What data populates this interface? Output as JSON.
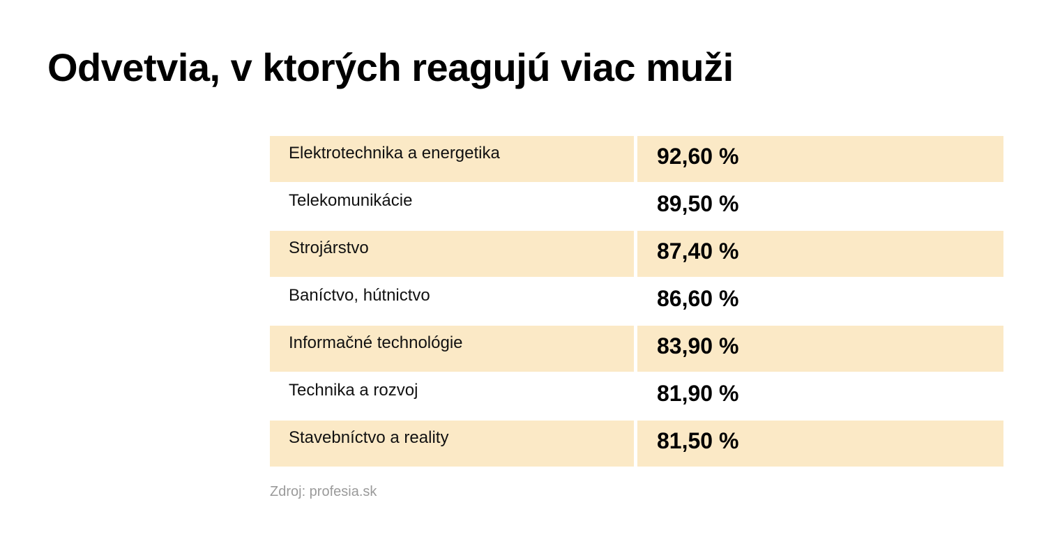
{
  "title": "Odvetvia, v ktorých reagujú viac muži",
  "source": "Zdroj: profesia.sk",
  "colors": {
    "row_shade": "#fbe9c6",
    "text": "#111111",
    "source_text": "#9a9a9a"
  },
  "chart_data": {
    "type": "table",
    "title": "Odvetvia, v ktorých reagujú viac muži",
    "columns": [
      "",
      ""
    ],
    "rows": [
      {
        "label": "Elektrotechnika a energetika",
        "value": 92.6,
        "value_text": "92,60 %",
        "shaded": true
      },
      {
        "label": "Telekomunikácie",
        "value": 89.5,
        "value_text": "89,50 %",
        "shaded": false
      },
      {
        "label": "Strojárstvo",
        "value": 87.4,
        "value_text": "87,40 %",
        "shaded": true
      },
      {
        "label": "Baníctvo, hútnictvo",
        "value": 86.6,
        "value_text": "86,60 %",
        "shaded": false
      },
      {
        "label": "Informačné technológie",
        "value": 83.9,
        "value_text": "83,90 %",
        "shaded": true
      },
      {
        "label": "Technika a rozvoj",
        "value": 81.9,
        "value_text": "81,90 %",
        "shaded": false
      },
      {
        "label": "Stavebníctvo a reality",
        "value": 81.5,
        "value_text": "81,50 %",
        "shaded": true
      }
    ],
    "source": "Zdroj: profesia.sk"
  }
}
